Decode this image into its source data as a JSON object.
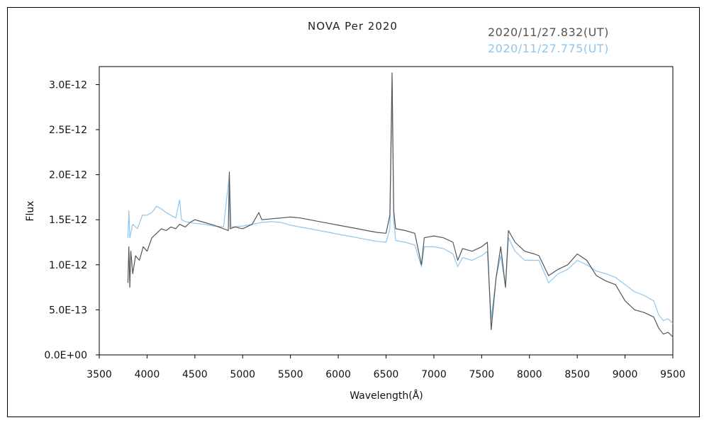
{
  "chart_data": {
    "type": "line",
    "title": "NOVA Per 2020",
    "xlabel": "Wavelength(Å)",
    "ylabel": "Flux",
    "xlim": [
      3500,
      9500
    ],
    "ylim": [
      0,
      3.2e-12
    ],
    "x_ticks": [
      3500,
      4000,
      4500,
      5000,
      5500,
      6000,
      6500,
      7000,
      7500,
      8000,
      8500,
      9000,
      9500
    ],
    "x_tick_labels": [
      "3500",
      "4000",
      "4500",
      "5000",
      "5500",
      "6000",
      "6500",
      "7000",
      "7500",
      "8000",
      "8500",
      "9000",
      "9500"
    ],
    "y_ticks": [
      0,
      5e-13,
      1e-12,
      1.5e-12,
      2e-12,
      2.5e-12,
      3e-12
    ],
    "y_tick_labels": [
      "0.0E+00",
      "5.0E-13",
      "1.0E-12",
      "1.5E-12",
      "2.0E-12",
      "2.5E-12",
      "3.0E-12"
    ],
    "grid": false,
    "legend_position": "top-right",
    "series": [
      {
        "name": "2020/11/27.832(UT)",
        "color": "#555555",
        "points": [
          [
            3800,
            8e-13
          ],
          [
            3810,
            1.2e-12
          ],
          [
            3820,
            7.5e-13
          ],
          [
            3830,
            1.15e-12
          ],
          [
            3850,
            9e-13
          ],
          [
            3880,
            1.1e-12
          ],
          [
            3920,
            1.05e-12
          ],
          [
            3960,
            1.2e-12
          ],
          [
            4000,
            1.15e-12
          ],
          [
            4050,
            1.3e-12
          ],
          [
            4100,
            1.35e-12
          ],
          [
            4150,
            1.4e-12
          ],
          [
            4200,
            1.38e-12
          ],
          [
            4250,
            1.42e-12
          ],
          [
            4300,
            1.4e-12
          ],
          [
            4340,
            1.45e-12
          ],
          [
            4400,
            1.42e-12
          ],
          [
            4450,
            1.47e-12
          ],
          [
            4500,
            1.5e-12
          ],
          [
            4600,
            1.47e-12
          ],
          [
            4700,
            1.44e-12
          ],
          [
            4800,
            1.4e-12
          ],
          [
            4850,
            1.38e-12
          ],
          [
            4861,
            2.03e-12
          ],
          [
            4870,
            1.4e-12
          ],
          [
            4920,
            1.42e-12
          ],
          [
            5000,
            1.4e-12
          ],
          [
            5100,
            1.45e-12
          ],
          [
            5169,
            1.58e-12
          ],
          [
            5200,
            1.5e-12
          ],
          [
            5300,
            1.51e-12
          ],
          [
            5400,
            1.52e-12
          ],
          [
            5500,
            1.53e-12
          ],
          [
            5600,
            1.52e-12
          ],
          [
            5700,
            1.5e-12
          ],
          [
            5800,
            1.48e-12
          ],
          [
            5900,
            1.46e-12
          ],
          [
            6000,
            1.44e-12
          ],
          [
            6100,
            1.42e-12
          ],
          [
            6200,
            1.4e-12
          ],
          [
            6300,
            1.38e-12
          ],
          [
            6400,
            1.36e-12
          ],
          [
            6500,
            1.35e-12
          ],
          [
            6540,
            1.55e-12
          ],
          [
            6563,
            3.13e-12
          ],
          [
            6580,
            1.6e-12
          ],
          [
            6600,
            1.4e-12
          ],
          [
            6700,
            1.38e-12
          ],
          [
            6800,
            1.35e-12
          ],
          [
            6870,
            1e-12
          ],
          [
            6900,
            1.3e-12
          ],
          [
            7000,
            1.32e-12
          ],
          [
            7100,
            1.3e-12
          ],
          [
            7200,
            1.25e-12
          ],
          [
            7250,
            1.05e-12
          ],
          [
            7300,
            1.18e-12
          ],
          [
            7400,
            1.15e-12
          ],
          [
            7500,
            1.2e-12
          ],
          [
            7560,
            1.25e-12
          ],
          [
            7600,
            2.8e-13
          ],
          [
            7650,
            8.5e-13
          ],
          [
            7700,
            1.2e-12
          ],
          [
            7750,
            7.5e-13
          ],
          [
            7780,
            1.38e-12
          ],
          [
            7850,
            1.25e-12
          ],
          [
            7950,
            1.15e-12
          ],
          [
            8050,
            1.12e-12
          ],
          [
            8100,
            1.1e-12
          ],
          [
            8200,
            8.8e-13
          ],
          [
            8300,
            9.5e-13
          ],
          [
            8400,
            1e-12
          ],
          [
            8500,
            1.12e-12
          ],
          [
            8600,
            1.05e-12
          ],
          [
            8700,
            8.8e-13
          ],
          [
            8800,
            8.2e-13
          ],
          [
            8900,
            7.8e-13
          ],
          [
            9000,
            6e-13
          ],
          [
            9100,
            5e-13
          ],
          [
            9200,
            4.7e-13
          ],
          [
            9300,
            4.2e-13
          ],
          [
            9350,
            3e-13
          ],
          [
            9400,
            2.3e-13
          ],
          [
            9450,
            2.5e-13
          ],
          [
            9500,
            2e-13
          ]
        ]
      },
      {
        "name": "2020/11/27.775(UT)",
        "color": "#8ec6ee",
        "points": [
          [
            3800,
            1.3e-12
          ],
          [
            3810,
            1.6e-12
          ],
          [
            3820,
            1.3e-12
          ],
          [
            3850,
            1.45e-12
          ],
          [
            3900,
            1.4e-12
          ],
          [
            3950,
            1.55e-12
          ],
          [
            4000,
            1.55e-12
          ],
          [
            4050,
            1.58e-12
          ],
          [
            4100,
            1.65e-12
          ],
          [
            4150,
            1.62e-12
          ],
          [
            4200,
            1.58e-12
          ],
          [
            4250,
            1.55e-12
          ],
          [
            4300,
            1.52e-12
          ],
          [
            4340,
            1.72e-12
          ],
          [
            4360,
            1.5e-12
          ],
          [
            4400,
            1.48e-12
          ],
          [
            4500,
            1.46e-12
          ],
          [
            4600,
            1.45e-12
          ],
          [
            4700,
            1.43e-12
          ],
          [
            4800,
            1.42e-12
          ],
          [
            4861,
            2e-12
          ],
          [
            4880,
            1.42e-12
          ],
          [
            5000,
            1.43e-12
          ],
          [
            5100,
            1.45e-12
          ],
          [
            5200,
            1.47e-12
          ],
          [
            5300,
            1.48e-12
          ],
          [
            5400,
            1.47e-12
          ],
          [
            5500,
            1.44e-12
          ],
          [
            5600,
            1.42e-12
          ],
          [
            5700,
            1.4e-12
          ],
          [
            5800,
            1.38e-12
          ],
          [
            5900,
            1.36e-12
          ],
          [
            6000,
            1.34e-12
          ],
          [
            6100,
            1.32e-12
          ],
          [
            6200,
            1.3e-12
          ],
          [
            6300,
            1.28e-12
          ],
          [
            6400,
            1.26e-12
          ],
          [
            6500,
            1.25e-12
          ],
          [
            6540,
            1.4e-12
          ],
          [
            6563,
            2.95e-12
          ],
          [
            6580,
            1.5e-12
          ],
          [
            6600,
            1.27e-12
          ],
          [
            6700,
            1.25e-12
          ],
          [
            6800,
            1.22e-12
          ],
          [
            6870,
            9.8e-13
          ],
          [
            6900,
            1.2e-12
          ],
          [
            7000,
            1.2e-12
          ],
          [
            7100,
            1.18e-12
          ],
          [
            7200,
            1.12e-12
          ],
          [
            7250,
            9.8e-13
          ],
          [
            7300,
            1.08e-12
          ],
          [
            7400,
            1.05e-12
          ],
          [
            7500,
            1.1e-12
          ],
          [
            7560,
            1.15e-12
          ],
          [
            7600,
            4e-13
          ],
          [
            7650,
            8.5e-13
          ],
          [
            7700,
            1.1e-12
          ],
          [
            7750,
            7.5e-13
          ],
          [
            7780,
            1.3e-12
          ],
          [
            7850,
            1.15e-12
          ],
          [
            7950,
            1.05e-12
          ],
          [
            8050,
            1.05e-12
          ],
          [
            8100,
            1.05e-12
          ],
          [
            8200,
            8e-13
          ],
          [
            8300,
            9e-13
          ],
          [
            8400,
            9.5e-13
          ],
          [
            8500,
            1.05e-12
          ],
          [
            8600,
            1e-12
          ],
          [
            8700,
            9.3e-13
          ],
          [
            8800,
            9e-13
          ],
          [
            8900,
            8.6e-13
          ],
          [
            9000,
            7.8e-13
          ],
          [
            9100,
            7e-13
          ],
          [
            9200,
            6.6e-13
          ],
          [
            9300,
            6e-13
          ],
          [
            9350,
            4.5e-13
          ],
          [
            9400,
            3.8e-13
          ],
          [
            9450,
            4e-13
          ],
          [
            9500,
            3.5e-13
          ]
        ]
      }
    ]
  }
}
